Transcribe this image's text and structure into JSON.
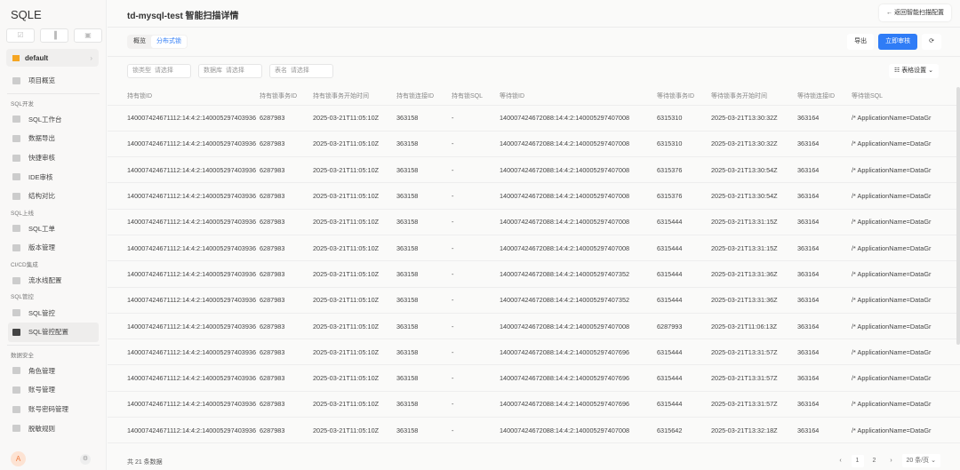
{
  "app": {
    "logo": "SQLE",
    "project": "default"
  },
  "quick_icons": [
    "☑",
    "▐",
    "▣"
  ],
  "nav": [
    {
      "type": "item",
      "label": "项目概览",
      "icon": "layers-icon"
    },
    {
      "type": "divider"
    },
    {
      "type": "group",
      "label": "SQL开发"
    },
    {
      "type": "item",
      "label": "SQL工作台",
      "icon": "monitor-icon"
    },
    {
      "type": "item",
      "label": "数据导出",
      "icon": "export-icon"
    },
    {
      "type": "item",
      "label": "快捷审核",
      "icon": "quick-audit-icon"
    },
    {
      "type": "item",
      "label": "IDE审核",
      "icon": "ide-icon"
    },
    {
      "type": "item",
      "label": "结构对比",
      "icon": "compare-icon"
    },
    {
      "type": "group",
      "label": "SQL上线"
    },
    {
      "type": "item",
      "label": "SQL工单",
      "icon": "clipboard-icon"
    },
    {
      "type": "item",
      "label": "版本管理",
      "icon": "file-icon"
    },
    {
      "type": "group",
      "label": "CI/CD集成"
    },
    {
      "type": "item",
      "label": "流水线配置",
      "icon": "pipeline-icon"
    },
    {
      "type": "group",
      "label": "SQL管控"
    },
    {
      "type": "item",
      "label": "SQL管控",
      "icon": "fingerprint-icon"
    },
    {
      "type": "item",
      "label": "SQL管控配置",
      "icon": "server-icon",
      "active": true
    },
    {
      "type": "divider"
    },
    {
      "type": "group",
      "label": "数据安全"
    },
    {
      "type": "item",
      "label": "角色管理",
      "icon": "role-icon"
    },
    {
      "type": "item",
      "label": "账号管理",
      "icon": "key-icon"
    },
    {
      "type": "item",
      "label": "账号密码管理",
      "icon": "shield-icon"
    },
    {
      "type": "item",
      "label": "脱敏规则",
      "icon": "eye-closed-icon"
    }
  ],
  "user": {
    "avatar": "A"
  },
  "header": {
    "title": "td-mysql-test 智能扫描详情",
    "back": "← 返回智能扫描配置"
  },
  "tabs": [
    {
      "label": "概览"
    },
    {
      "label": "分布式锁",
      "active": true
    }
  ],
  "actions": {
    "export": "导出",
    "audit": "立即审核",
    "refresh": "⟳"
  },
  "filters": [
    {
      "label": "锁类型",
      "placeholder": "请选择"
    },
    {
      "label": "数据库",
      "placeholder": "请选择"
    },
    {
      "label": "表名",
      "placeholder": "请选择"
    }
  ],
  "table_settings": "表格设置",
  "columns": [
    "持有锁ID",
    "持有锁事务ID",
    "持有锁事务开始时间",
    "持有锁连接ID",
    "持有锁SQL",
    "等待锁ID",
    "等待锁事务ID",
    "等待锁事务开始时间",
    "等待锁连接ID",
    "等待锁SQL"
  ],
  "rows": [
    [
      "140007424671112:14:4:2:140005297403936",
      "6287983",
      "2025-03-21T11:05:10Z",
      "363158",
      "-",
      "140007424672088:14:4:2:140005297407008",
      "6315310",
      "2025-03-21T13:30:32Z",
      "363164",
      "/* ApplicationName=DataGr"
    ],
    [
      "140007424671112:14:4:2:140005297403936",
      "6287983",
      "2025-03-21T11:05:10Z",
      "363158",
      "-",
      "140007424672088:14:4:2:140005297407008",
      "6315310",
      "2025-03-21T13:30:32Z",
      "363164",
      "/* ApplicationName=DataGr"
    ],
    [
      "140007424671112:14:4:2:140005297403936",
      "6287983",
      "2025-03-21T11:05:10Z",
      "363158",
      "-",
      "140007424672088:14:4:2:140005297407008",
      "6315376",
      "2025-03-21T13:30:54Z",
      "363164",
      "/* ApplicationName=DataGr"
    ],
    [
      "140007424671112:14:4:2:140005297403936",
      "6287983",
      "2025-03-21T11:05:10Z",
      "363158",
      "-",
      "140007424672088:14:4:2:140005297407008",
      "6315376",
      "2025-03-21T13:30:54Z",
      "363164",
      "/* ApplicationName=DataGr"
    ],
    [
      "140007424671112:14:4:2:140005297403936",
      "6287983",
      "2025-03-21T11:05:10Z",
      "363158",
      "-",
      "140007424672088:14:4:2:140005297407008",
      "6315444",
      "2025-03-21T13:31:15Z",
      "363164",
      "/* ApplicationName=DataGr"
    ],
    [
      "140007424671112:14:4:2:140005297403936",
      "6287983",
      "2025-03-21T11:05:10Z",
      "363158",
      "-",
      "140007424672088:14:4:2:140005297407008",
      "6315444",
      "2025-03-21T13:31:15Z",
      "363164",
      "/* ApplicationName=DataGr"
    ],
    [
      "140007424671112:14:4:2:140005297403936",
      "6287983",
      "2025-03-21T11:05:10Z",
      "363158",
      "-",
      "140007424672088:14:4:2:140005297407352",
      "6315444",
      "2025-03-21T13:31:36Z",
      "363164",
      "/* ApplicationName=DataGr"
    ],
    [
      "140007424671112:14:4:2:140005297403936",
      "6287983",
      "2025-03-21T11:05:10Z",
      "363158",
      "-",
      "140007424672088:14:4:2:140005297407352",
      "6315444",
      "2025-03-21T13:31:36Z",
      "363164",
      "/* ApplicationName=DataGr"
    ],
    [
      "140007424671112:14:4:2:140005297403936",
      "6287983",
      "2025-03-21T11:05:10Z",
      "363158",
      "-",
      "140007424672088:14:4:2:140005297407008",
      "6287993",
      "2025-03-21T11:06:13Z",
      "363164",
      "/* ApplicationName=DataGr"
    ],
    [
      "140007424671112:14:4:2:140005297403936",
      "6287983",
      "2025-03-21T11:05:10Z",
      "363158",
      "-",
      "140007424672088:14:4:2:140005297407696",
      "6315444",
      "2025-03-21T13:31:57Z",
      "363164",
      "/* ApplicationName=DataGr"
    ],
    [
      "140007424671112:14:4:2:140005297403936",
      "6287983",
      "2025-03-21T11:05:10Z",
      "363158",
      "-",
      "140007424672088:14:4:2:140005297407696",
      "6315444",
      "2025-03-21T13:31:57Z",
      "363164",
      "/* ApplicationName=DataGr"
    ],
    [
      "140007424671112:14:4:2:140005297403936",
      "6287983",
      "2025-03-21T11:05:10Z",
      "363158",
      "-",
      "140007424672088:14:4:2:140005297407696",
      "6315444",
      "2025-03-21T13:31:57Z",
      "363164",
      "/* ApplicationName=DataGr"
    ],
    [
      "140007424671112:14:4:2:140005297403936",
      "6287983",
      "2025-03-21T11:05:10Z",
      "363158",
      "-",
      "140007424672088:14:4:2:140005297407008",
      "6315642",
      "2025-03-21T13:32:18Z",
      "363164",
      "/* ApplicationName=DataGr"
    ]
  ],
  "footer": {
    "total": "共 21 条数据",
    "pages": [
      "1",
      "2"
    ],
    "prev": "‹",
    "next": "›",
    "page_size": "20 条/页 ⌄"
  },
  "colors": {
    "accent": "#2f7cf6",
    "avatar": "#f07b3f",
    "flag": "#f5a623"
  }
}
